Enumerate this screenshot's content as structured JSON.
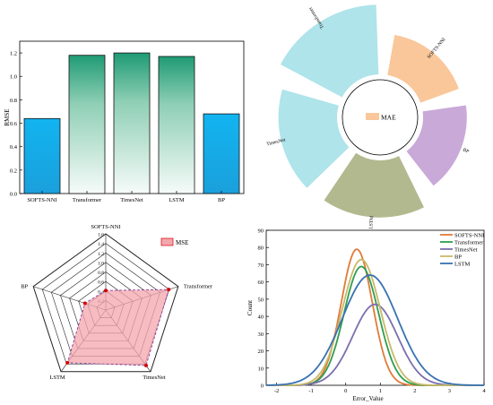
{
  "chart_data": [
    {
      "type": "bar",
      "ylabel": "RMSE",
      "categories": [
        "SOFTS-NNI",
        "Transformer",
        "TimesNet",
        "LSTM",
        "BP"
      ],
      "values": [
        0.64,
        1.18,
        1.2,
        1.17,
        0.68
      ],
      "ylim": [
        0,
        1.3
      ],
      "yticks": [
        "0.0",
        "0.2",
        "0.4",
        "0.6",
        "0.8",
        "1.0",
        "1.2"
      ],
      "colors": [
        "#1aa7e6",
        "#2aa57a",
        "#2aa57a",
        "#2aa57a",
        "#1aa7e6"
      ]
    },
    {
      "type": "pie",
      "legend": "MAE",
      "categories": [
        "Transformer",
        "SOFTS-NNI",
        "BP",
        "LSTM",
        "TimesNet"
      ],
      "values": [
        0.95,
        0.56,
        0.6,
        0.78,
        0.8
      ],
      "colors": [
        "#aee4ea",
        "#f9c79a",
        "#c9a9d8",
        "#b3b98f",
        "#aee4ea"
      ]
    },
    {
      "type": "radar",
      "legend": "MSE",
      "axes": [
        "SOFTS-NNI",
        "Transformer",
        "TimesNet",
        "LSTM",
        "BP"
      ],
      "values": [
        0.41,
        1.39,
        1.44,
        1.37,
        0.46
      ],
      "rmax": 1.6,
      "rticks": [
        "0.2",
        "0.4",
        "0.6",
        "0.8",
        "1.0",
        "1.2",
        "1.4",
        "1.6"
      ],
      "fill": "#f4a6ad",
      "line": "#d40000"
    },
    {
      "type": "line",
      "xlabel": "Error_Value",
      "ylabel": "Count",
      "xlim": [
        -2.3,
        4
      ],
      "ylim": [
        0,
        90
      ],
      "xticks": [
        "-2",
        "-1",
        "0",
        "1",
        "2",
        "3",
        "4"
      ],
      "yticks": [
        "0",
        "10",
        "20",
        "30",
        "40",
        "50",
        "60",
        "70",
        "80",
        "90"
      ],
      "series": [
        {
          "name": "SOFTS-NNI",
          "mean": 0.32,
          "sd": 0.45,
          "peak": 79,
          "color": "#e07b39"
        },
        {
          "name": "Transformer",
          "mean": 0.45,
          "sd": 0.5,
          "peak": 69,
          "color": "#2e9e4f"
        },
        {
          "name": "TimesNet",
          "mean": 0.85,
          "sd": 0.65,
          "peak": 47,
          "color": "#7b6fae"
        },
        {
          "name": "BP",
          "mean": 0.45,
          "sd": 0.55,
          "peak": 73,
          "color": "#c8b96a"
        },
        {
          "name": "LSTM",
          "mean": 0.7,
          "sd": 0.8,
          "peak": 64,
          "color": "#3a72b0"
        }
      ]
    }
  ]
}
